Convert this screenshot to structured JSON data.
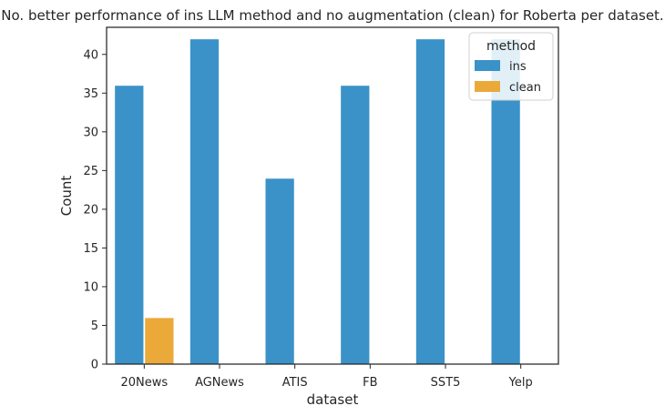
{
  "chart_data": {
    "type": "bar",
    "title": "No. better performance of ins LLM method and no augmentation (clean) for Roberta per dataset.",
    "xlabel": "dataset",
    "ylabel": "Count",
    "categories": [
      "20News",
      "AGNews",
      "ATIS",
      "FB",
      "SST5",
      "Yelp"
    ],
    "series": [
      {
        "name": "ins",
        "color": "#3a92c8",
        "values": [
          36,
          42,
          24,
          36,
          42,
          42
        ]
      },
      {
        "name": "clean",
        "color": "#eba93a",
        "values": [
          6,
          0,
          0,
          0,
          0,
          0
        ]
      }
    ],
    "ylim": [
      0,
      43.5
    ],
    "yticks": [
      0,
      5,
      10,
      15,
      20,
      25,
      30,
      35,
      40
    ],
    "legend": {
      "title": "method",
      "placement": "top-right"
    },
    "grid": false
  }
}
